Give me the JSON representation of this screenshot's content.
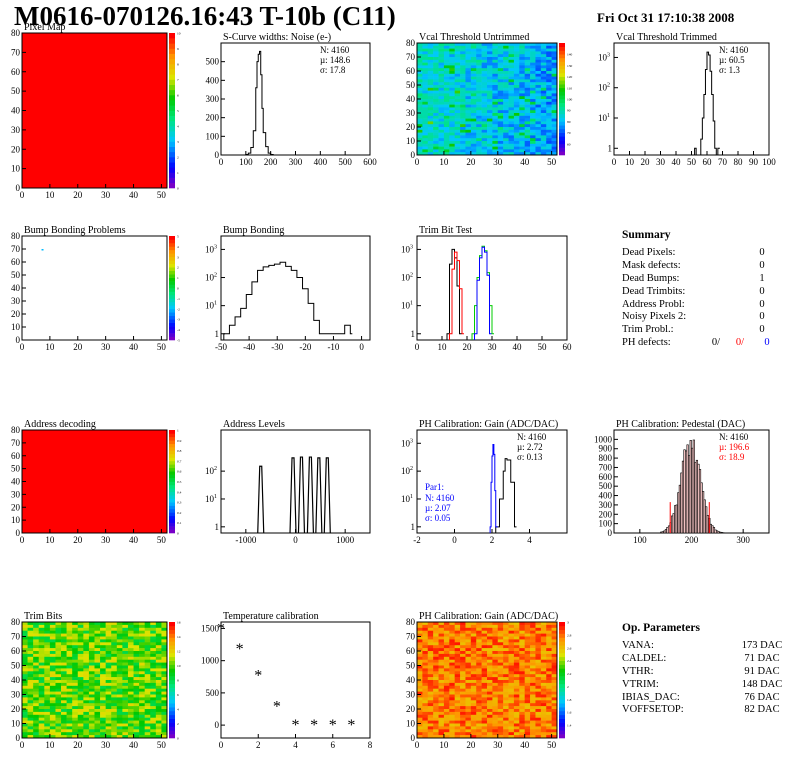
{
  "header": {
    "title": "M0616-070126.16:43 T-10b (C11)",
    "timestamp": "Fri Oct 31 17:10:38 2008"
  },
  "colors": {
    "red": "#ff0000",
    "blue": "#0000ff",
    "green": "#00cc00",
    "black": "#000000"
  },
  "summary": {
    "title": "Summary",
    "rows": [
      {
        "label": "Dead Pixels:",
        "value": "0"
      },
      {
        "label": "Mask defects:",
        "value": "0"
      },
      {
        "label": "Dead Bumps:",
        "value": "1"
      },
      {
        "label": "Dead Trimbits:",
        "value": "0"
      },
      {
        "label": "Address Probl:",
        "value": "0"
      },
      {
        "label": "Noisy Pixels 2:",
        "value": "0"
      },
      {
        "label": "Trim Probl.:",
        "value": "0"
      }
    ],
    "ph_defects": {
      "label": "PH defects:",
      "values": [
        "0/",
        "0/",
        "0"
      ]
    }
  },
  "op_parameters": {
    "title": "Op. Parameters",
    "rows": [
      {
        "label": "VANA:",
        "value": "173 DAC"
      },
      {
        "label": "CALDEL:",
        "value": "71 DAC"
      },
      {
        "label": "VTHR:",
        "value": "91 DAC"
      },
      {
        "label": "VTRIM:",
        "value": "148 DAC"
      },
      {
        "label": "IBIAS_DAC:",
        "value": "76 DAC"
      },
      {
        "label": "VOFFSETOP:",
        "value": "82 DAC"
      }
    ]
  },
  "chart_data": [
    {
      "type": "heatmap",
      "title": "Pixel Map",
      "xlim": [
        0,
        52
      ],
      "ylim": [
        0,
        80
      ],
      "xticks": [
        0,
        10,
        20,
        30,
        40,
        50
      ],
      "yticks": [
        0,
        10,
        20,
        30,
        40,
        50,
        60,
        70,
        80
      ],
      "fill": "uniform",
      "zlim": [
        0,
        10
      ],
      "zticks": [
        0,
        1,
        2,
        3,
        4,
        5,
        6,
        7,
        8,
        9,
        10
      ]
    },
    {
      "type": "line",
      "title": "S-Curve widths: Noise (e-)",
      "xlim": [
        0,
        600
      ],
      "ylim": [
        0,
        600
      ],
      "xticks": [
        0,
        100,
        200,
        300,
        400,
        500,
        600
      ],
      "yticks": [
        0,
        100,
        200,
        300,
        400,
        500
      ],
      "stats": [
        "N: 4160",
        "µ: 148.6",
        "σ: 17.8"
      ],
      "x": [
        90,
        100,
        110,
        120,
        130,
        140,
        145,
        150,
        155,
        160,
        165,
        170,
        180,
        190,
        200,
        210
      ],
      "y": [
        0,
        3,
        10,
        40,
        130,
        360,
        500,
        540,
        555,
        430,
        250,
        120,
        45,
        10,
        3,
        0
      ]
    },
    {
      "type": "heatmap",
      "title": "Vcal Threshold Untrimmed",
      "xlim": [
        0,
        52
      ],
      "ylim": [
        0,
        80
      ],
      "xticks": [
        0,
        10,
        20,
        30,
        40,
        50
      ],
      "yticks": [
        0,
        10,
        20,
        30,
        40,
        50,
        60,
        70,
        80
      ],
      "fill": "random-blue-cyan",
      "zlim": [
        50,
        150
      ],
      "zticks": [
        60,
        70,
        80,
        90,
        100,
        110,
        120,
        130,
        140
      ]
    },
    {
      "type": "line",
      "title": "Vcal Threshold Trimmed",
      "xlim": [
        0,
        100
      ],
      "ylim": [
        1,
        3000
      ],
      "log": true,
      "xticks": [
        0,
        10,
        20,
        30,
        40,
        50,
        60,
        70,
        80,
        90,
        100
      ],
      "yticks": [
        1,
        10,
        100,
        1000
      ],
      "stats": [
        "N: 4160",
        "µ: 60.5",
        "σ:  1.3"
      ],
      "x": [
        52,
        53,
        56,
        57,
        58,
        59,
        60,
        61,
        62,
        63,
        64,
        65,
        66,
        67
      ],
      "y": [
        1,
        0,
        2,
        10,
        60,
        400,
        1500,
        1200,
        350,
        60,
        8,
        1,
        0,
        1
      ]
    },
    {
      "type": "heatmap",
      "title": "Bump Bonding Problems",
      "xlim": [
        0,
        52
      ],
      "ylim": [
        0,
        80
      ],
      "xticks": [
        0,
        10,
        20,
        30,
        40,
        50
      ],
      "yticks": [
        0,
        10,
        20,
        30,
        40,
        50,
        60,
        70,
        80
      ],
      "fill": "empty",
      "zlim": [
        -5,
        5
      ],
      "zticks": [
        -5,
        -4,
        -3,
        -2,
        -1,
        0,
        1,
        2,
        3,
        4,
        5
      ]
    },
    {
      "type": "line",
      "title": "Bump Bonding",
      "xlim": [
        -50,
        3
      ],
      "ylim": [
        1,
        3000
      ],
      "log": true,
      "xticks": [
        -50,
        -40,
        -30,
        -20,
        -10,
        0
      ],
      "yticks": [
        1,
        10,
        100,
        1000
      ],
      "x": [
        -49,
        -47,
        -45,
        -43,
        -41,
        -39,
        -37,
        -35,
        -33,
        -31,
        -29,
        -27,
        -25,
        -23,
        -21,
        -19,
        -17,
        -15,
        -8,
        -6,
        -4
      ],
      "y": [
        1,
        2,
        4,
        8,
        25,
        70,
        180,
        240,
        270,
        300,
        350,
        250,
        180,
        100,
        40,
        12,
        3,
        1,
        1,
        2,
        1
      ]
    },
    {
      "type": "line",
      "title": "Trim Bit Test",
      "xlim": [
        0,
        60
      ],
      "ylim": [
        1,
        3000
      ],
      "log": true,
      "xticks": [
        0,
        10,
        20,
        30,
        40,
        50,
        60
      ],
      "yticks": [
        1,
        10,
        100,
        1000
      ],
      "series": [
        {
          "color": "black",
          "x": [
            12,
            13,
            14,
            15,
            16,
            17
          ],
          "y": [
            1,
            300,
            1000,
            500,
            50,
            1
          ]
        },
        {
          "color": "red",
          "x": [
            13,
            14,
            15,
            16,
            17,
            18
          ],
          "y": [
            1,
            200,
            800,
            400,
            40,
            1
          ]
        },
        {
          "color": "green",
          "x": [
            22,
            23,
            24,
            25,
            26,
            27,
            28,
            29,
            30
          ],
          "y": [
            1,
            10,
            100,
            600,
            1300,
            900,
            150,
            10,
            1
          ]
        },
        {
          "color": "blue",
          "x": [
            23,
            24,
            25,
            26,
            27,
            28,
            29
          ],
          "y": [
            1,
            80,
            500,
            1200,
            800,
            120,
            1
          ]
        }
      ]
    },
    {
      "type": "heatmap",
      "title": "Address decoding",
      "xlim": [
        0,
        52
      ],
      "ylim": [
        0,
        80
      ],
      "xticks": [
        0,
        10,
        20,
        30,
        40,
        50
      ],
      "yticks": [
        0,
        10,
        20,
        30,
        40,
        50,
        60,
        70,
        80
      ],
      "fill": "uniform",
      "zlim": [
        0,
        1
      ],
      "zticks": [
        0,
        0.1,
        0.2,
        0.3,
        0.4,
        0.5,
        0.6,
        0.7,
        0.8,
        0.9,
        1
      ]
    },
    {
      "type": "line",
      "title": "Address Levels",
      "xlim": [
        -1500,
        1500
      ],
      "ylim": [
        1,
        3000
      ],
      "log": true,
      "xticks": [
        -1000,
        0,
        1000
      ],
      "yticks": [
        1,
        10,
        100
      ],
      "peaks": [
        -700,
        -50,
        120,
        300,
        470,
        640
      ],
      "peak_heights": [
        150,
        300,
        320,
        320,
        300,
        300
      ]
    },
    {
      "type": "line",
      "title": "PH Calibration: Gain (ADC/DAC)",
      "xlim": [
        -2,
        6
      ],
      "ylim": [
        1,
        3000
      ],
      "log": true,
      "xticks": [
        -2,
        0,
        2,
        4
      ],
      "yticks": [
        1,
        10,
        100,
        1000
      ],
      "stats": [
        "N: 4160",
        "µ: 2.72",
        "σ: 0.13"
      ],
      "stats2_title": "Par1:",
      "stats2": [
        "N: 4160",
        "µ: 2.07",
        "σ: 0.05"
      ],
      "series": [
        {
          "color": "black",
          "x": [
            2.2,
            2.4,
            2.6,
            2.7,
            2.8,
            3.0,
            3.2
          ],
          "y": [
            1,
            10,
            100,
            280,
            250,
            40,
            1
          ]
        },
        {
          "color": "blue",
          "x": [
            1.9,
            1.95,
            2.0,
            2.05,
            2.1,
            2.15,
            2.2
          ],
          "y": [
            1,
            40,
            350,
            900,
            400,
            20,
            1
          ]
        }
      ]
    },
    {
      "type": "bar",
      "title": "PH Calibration: Pedestal (DAC)",
      "xlim": [
        50,
        350
      ],
      "ylim": [
        0,
        1100
      ],
      "xticks": [
        100,
        200,
        300
      ],
      "yticks": [
        0,
        100,
        200,
        300,
        400,
        500,
        600,
        700,
        800,
        900,
        1000
      ],
      "stats": [
        "N: 4160",
        "µ: 196.6",
        "σ: 18.9"
      ],
      "mean": 196.6,
      "sigma": 18.9
    },
    {
      "type": "heatmap",
      "title": "Trim Bits",
      "xlim": [
        0,
        52
      ],
      "ylim": [
        0,
        80
      ],
      "xticks": [
        0,
        10,
        20,
        30,
        40,
        50
      ],
      "yticks": [
        0,
        10,
        20,
        30,
        40,
        50,
        60,
        70,
        80
      ],
      "fill": "random-green-yellow",
      "zlim": [
        0,
        16
      ],
      "zticks": [
        0,
        2,
        4,
        6,
        8,
        10,
        12,
        14,
        16
      ]
    },
    {
      "type": "scatter",
      "title": "Temperature calibration",
      "xlim": [
        0,
        8
      ],
      "ylim": [
        -200,
        1600
      ],
      "xticks": [
        0,
        2,
        4,
        6,
        8
      ],
      "yticks": [
        0,
        500,
        1000,
        1500
      ],
      "x": [
        0,
        1,
        2,
        3,
        4,
        5,
        6,
        7
      ],
      "y": [
        1500,
        1180,
        770,
        290,
        0,
        0,
        0,
        0
      ]
    },
    {
      "type": "heatmap",
      "title": "PH Calibration: Gain (ADC/DAC)",
      "xlim": [
        0,
        52
      ],
      "ylim": [
        0,
        80
      ],
      "xticks": [
        0,
        10,
        20,
        30,
        40,
        50
      ],
      "yticks": [
        0,
        10,
        20,
        30,
        40,
        50,
        60,
        70,
        80
      ],
      "fill": "random-orange-red",
      "zlim": [
        1.2,
        3
      ],
      "zticks": [
        1.4,
        1.6,
        1.8,
        2,
        2.2,
        2.4,
        2.6,
        2.8,
        3
      ]
    }
  ]
}
